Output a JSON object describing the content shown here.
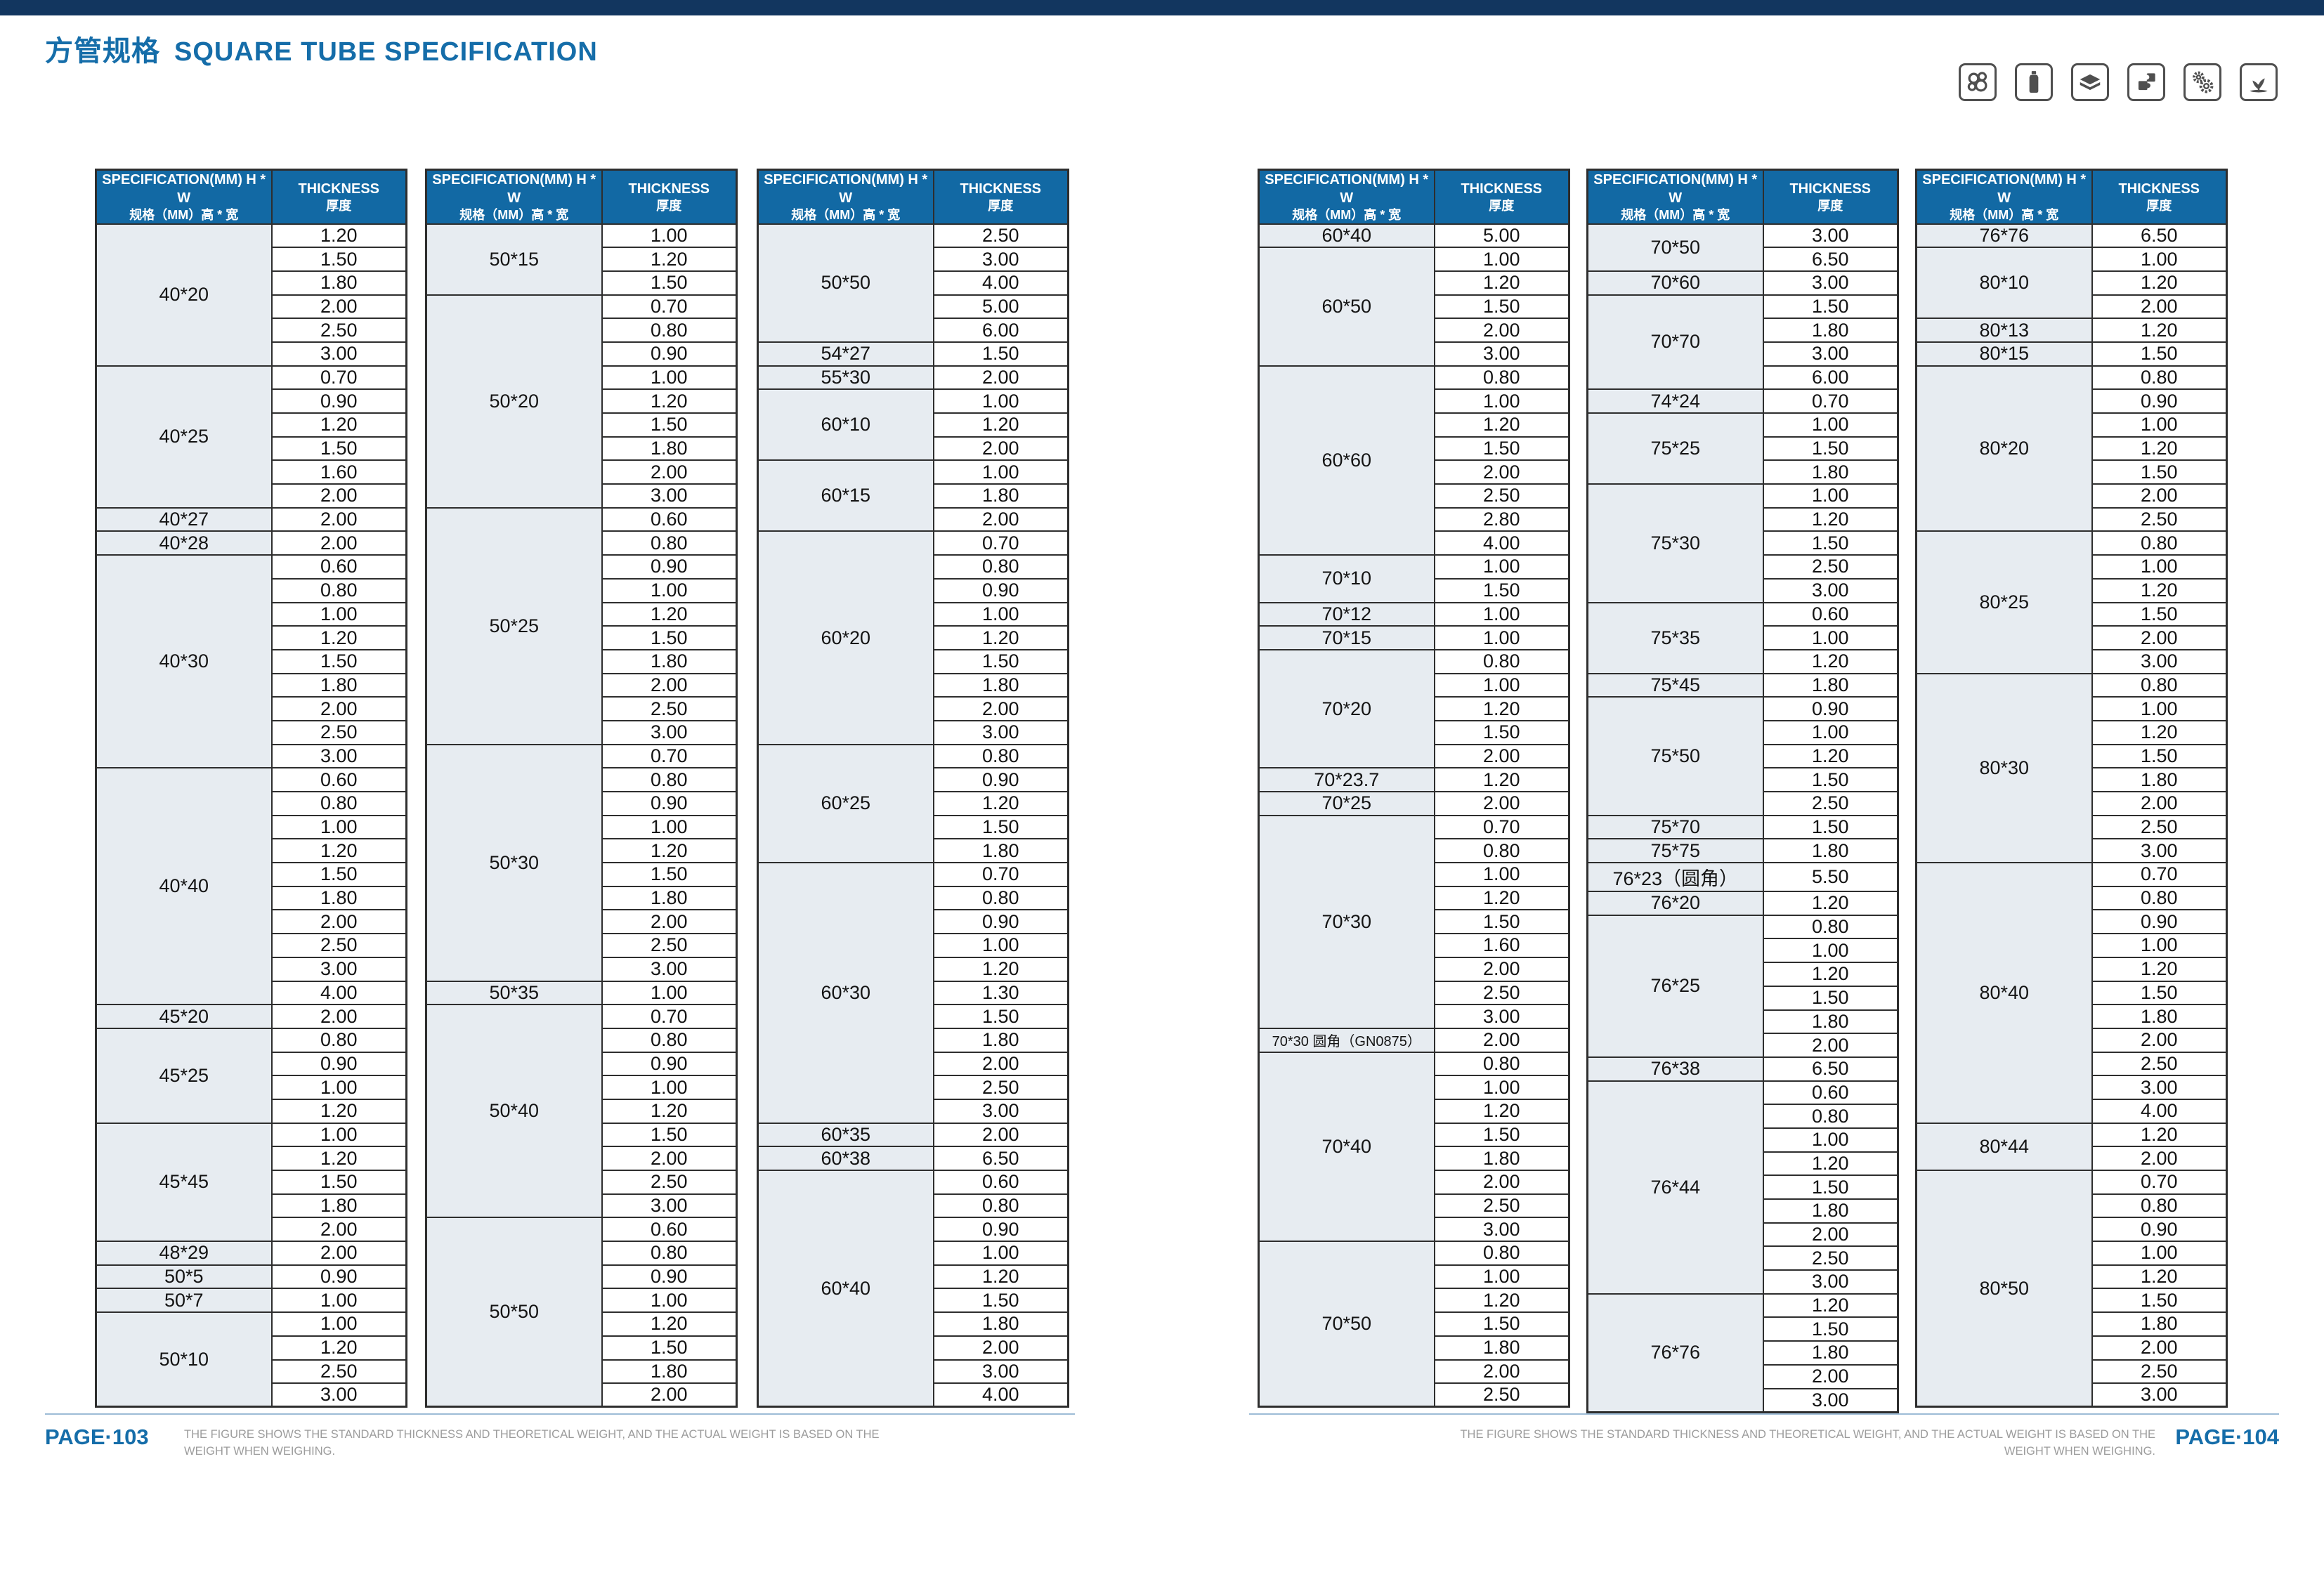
{
  "title": {
    "zh": "方管规格",
    "en": "SQUARE TUBE SPECIFICATION"
  },
  "table_header": {
    "spec_en": "SPECIFICATION(MM) H * W",
    "spec_zh": "规格（MM）高 * 宽",
    "thick_en": "THICKNESS",
    "thick_zh": "厚度"
  },
  "icons": [
    "tube-bundle-icon",
    "bottle-icon",
    "stacked-sheets-icon",
    "puzzle-icon",
    "gears-icon",
    "plant-icon"
  ],
  "colors": {
    "header_bg": "#1269a4",
    "spec_cell_bg": "#e7ecf1",
    "accent_blue": "#156da9",
    "top_bar": "#12365f",
    "border": "#2e2e2e",
    "note_gray": "#9c9c9c"
  },
  "footer": {
    "left_page": "PAGE·103",
    "right_page": "PAGE·104",
    "note_line1": "THE FIGURE SHOWS THE STANDARD THICKNESS AND THEORETICAL WEIGHT, AND THE ACTUAL WEIGHT IS BASED ON THE",
    "note_line2": "WEIGHT WHEN WEIGHING."
  },
  "tables": [
    {
      "groups": [
        {
          "spec": "40*20",
          "thicknesses": [
            "1.20",
            "1.50",
            "1.80",
            "2.00",
            "2.50",
            "3.00"
          ]
        },
        {
          "spec": "40*25",
          "thicknesses": [
            "0.70",
            "0.90",
            "1.20",
            "1.50",
            "1.60",
            "2.00"
          ]
        },
        {
          "spec": "40*27",
          "thicknesses": [
            "2.00"
          ]
        },
        {
          "spec": "40*28",
          "thicknesses": [
            "2.00"
          ]
        },
        {
          "spec": "40*30",
          "thicknesses": [
            "0.60",
            "0.80",
            "1.00",
            "1.20",
            "1.50",
            "1.80",
            "2.00",
            "2.50",
            "3.00"
          ]
        },
        {
          "spec": "40*40",
          "thicknesses": [
            "0.60",
            "0.80",
            "1.00",
            "1.20",
            "1.50",
            "1.80",
            "2.00",
            "2.50",
            "3.00",
            "4.00"
          ]
        },
        {
          "spec": "45*20",
          "thicknesses": [
            "2.00"
          ]
        },
        {
          "spec": "45*25",
          "thicknesses": [
            "0.80",
            "0.90",
            "1.00",
            "1.20"
          ]
        },
        {
          "spec": "45*45",
          "thicknesses": [
            "1.00",
            "1.20",
            "1.50",
            "1.80",
            "2.00"
          ]
        },
        {
          "spec": "48*29",
          "thicknesses": [
            "2.00"
          ]
        },
        {
          "spec": "50*5",
          "thicknesses": [
            "0.90"
          ]
        },
        {
          "spec": "50*7",
          "thicknesses": [
            "1.00"
          ]
        },
        {
          "spec": "50*10",
          "thicknesses": [
            "1.00",
            "1.20",
            "2.50",
            "3.00"
          ]
        }
      ]
    },
    {
      "groups": [
        {
          "spec": "50*15",
          "thicknesses": [
            "1.00",
            "1.20",
            "1.50"
          ]
        },
        {
          "spec": "50*20",
          "thicknesses": [
            "0.70",
            "0.80",
            "0.90",
            "1.00",
            "1.20",
            "1.50",
            "1.80",
            "2.00",
            "3.00"
          ]
        },
        {
          "spec": "50*25",
          "thicknesses": [
            "0.60",
            "0.80",
            "0.90",
            "1.00",
            "1.20",
            "1.50",
            "1.80",
            "2.00",
            "2.50",
            "3.00"
          ]
        },
        {
          "spec": "50*30",
          "thicknesses": [
            "0.70",
            "0.80",
            "0.90",
            "1.00",
            "1.20",
            "1.50",
            "1.80",
            "2.00",
            "2.50",
            "3.00"
          ]
        },
        {
          "spec": "50*35",
          "thicknesses": [
            "1.00"
          ]
        },
        {
          "spec": "50*40",
          "thicknesses": [
            "0.70",
            "0.80",
            "0.90",
            "1.00",
            "1.20",
            "1.50",
            "2.00",
            "2.50",
            "3.00"
          ]
        },
        {
          "spec": "50*50",
          "thicknesses": [
            "0.60",
            "0.80",
            "0.90",
            "1.00",
            "1.20",
            "1.50",
            "1.80",
            "2.00"
          ]
        }
      ]
    },
    {
      "groups": [
        {
          "spec": "50*50",
          "thicknesses": [
            "2.50",
            "3.00",
            "4.00",
            "5.00",
            "6.00"
          ]
        },
        {
          "spec": "54*27",
          "thicknesses": [
            "1.50"
          ]
        },
        {
          "spec": "55*30",
          "thicknesses": [
            "2.00"
          ]
        },
        {
          "spec": "60*10",
          "thicknesses": [
            "1.00",
            "1.20",
            "2.00"
          ]
        },
        {
          "spec": "60*15",
          "thicknesses": [
            "1.00",
            "1.80",
            "2.00"
          ]
        },
        {
          "spec": "60*20",
          "thicknesses": [
            "0.70",
            "0.80",
            "0.90",
            "1.00",
            "1.20",
            "1.50",
            "1.80",
            "2.00",
            "3.00"
          ]
        },
        {
          "spec": "60*25",
          "thicknesses": [
            "0.80",
            "0.90",
            "1.20",
            "1.50",
            "1.80"
          ]
        },
        {
          "spec": "60*30",
          "thicknesses": [
            "0.70",
            "0.80",
            "0.90",
            "1.00",
            "1.20",
            "1.30",
            "1.50",
            "1.80",
            "2.00",
            "2.50",
            "3.00"
          ]
        },
        {
          "spec": "60*35",
          "thicknesses": [
            "2.00"
          ]
        },
        {
          "spec": "60*38",
          "thicknesses": [
            "6.50"
          ]
        },
        {
          "spec": "60*40",
          "thicknesses": [
            "0.60",
            "0.80",
            "0.90",
            "1.00",
            "1.20",
            "1.50",
            "1.80",
            "2.00",
            "3.00",
            "4.00"
          ]
        }
      ]
    },
    {
      "groups": [
        {
          "spec": "60*40",
          "thicknesses": [
            "5.00"
          ]
        },
        {
          "spec": "60*50",
          "thicknesses": [
            "1.00",
            "1.20",
            "1.50",
            "2.00",
            "3.00"
          ]
        },
        {
          "spec": "60*60",
          "thicknesses": [
            "0.80",
            "1.00",
            "1.20",
            "1.50",
            "2.00",
            "2.50",
            "2.80",
            "4.00"
          ]
        },
        {
          "spec": "70*10",
          "thicknesses": [
            "1.00",
            "1.50"
          ]
        },
        {
          "spec": "70*12",
          "thicknesses": [
            "1.00"
          ]
        },
        {
          "spec": "70*15",
          "thicknesses": [
            "1.00"
          ]
        },
        {
          "spec": "70*20",
          "thicknesses": [
            "0.80",
            "1.00",
            "1.20",
            "1.50",
            "2.00"
          ]
        },
        {
          "spec": "70*23.7",
          "thicknesses": [
            "1.20"
          ]
        },
        {
          "spec": "70*25",
          "thicknesses": [
            "2.00"
          ]
        },
        {
          "spec": "70*30",
          "thicknesses": [
            "0.70",
            "0.80",
            "1.00",
            "1.20",
            "1.50",
            "1.60",
            "2.00",
            "2.50",
            "3.00"
          ]
        },
        {
          "spec": "70*30 圆角（GN0875）",
          "thicknesses": [
            "2.00"
          ]
        },
        {
          "spec": "70*40",
          "thicknesses": [
            "0.80",
            "1.00",
            "1.20",
            "1.50",
            "1.80",
            "2.00",
            "2.50",
            "3.00"
          ]
        },
        {
          "spec": "70*50",
          "thicknesses": [
            "0.80",
            "1.00",
            "1.20",
            "1.50",
            "1.80",
            "2.00",
            "2.50"
          ]
        }
      ]
    },
    {
      "groups": [
        {
          "spec": "70*50",
          "thicknesses": [
            "3.00",
            "6.50"
          ]
        },
        {
          "spec": "70*60",
          "thicknesses": [
            "3.00"
          ]
        },
        {
          "spec": "70*70",
          "thicknesses": [
            "1.50",
            "1.80",
            "3.00",
            "6.00"
          ]
        },
        {
          "spec": "74*24",
          "thicknesses": [
            "0.70"
          ]
        },
        {
          "spec": "75*25",
          "thicknesses": [
            "1.00",
            "1.50",
            "1.80"
          ]
        },
        {
          "spec": "75*30",
          "thicknesses": [
            "1.00",
            "1.20",
            "1.50",
            "2.50",
            "3.00"
          ]
        },
        {
          "spec": "75*35",
          "thicknesses": [
            "0.60",
            "1.00",
            "1.20"
          ]
        },
        {
          "spec": "75*45",
          "thicknesses": [
            "1.80"
          ]
        },
        {
          "spec": "75*50",
          "thicknesses": [
            "0.90",
            "1.00",
            "1.20",
            "1.50",
            "2.50"
          ]
        },
        {
          "spec": "75*70",
          "thicknesses": [
            "1.50"
          ]
        },
        {
          "spec": "75*75",
          "thicknesses": [
            "1.80"
          ]
        },
        {
          "spec": "76*23（圆角）",
          "thicknesses": [
            "5.50"
          ]
        },
        {
          "spec": "76*20",
          "thicknesses": [
            "1.20"
          ]
        },
        {
          "spec": "76*25",
          "thicknesses": [
            "0.80",
            "1.00",
            "1.20",
            "1.50",
            "1.80",
            "2.00"
          ]
        },
        {
          "spec": "76*38",
          "thicknesses": [
            "6.50"
          ]
        },
        {
          "spec": "76*44",
          "thicknesses": [
            "0.60",
            "0.80",
            "1.00",
            "1.20",
            "1.50",
            "1.80",
            "2.00",
            "2.50",
            "3.00"
          ]
        },
        {
          "spec": "76*76",
          "thicknesses": [
            "1.20",
            "1.50",
            "1.80",
            "2.00",
            "3.00"
          ]
        }
      ]
    },
    {
      "groups": [
        {
          "spec": "76*76",
          "thicknesses": [
            "6.50"
          ]
        },
        {
          "spec": "80*10",
          "thicknesses": [
            "1.00",
            "1.20",
            "2.00"
          ]
        },
        {
          "spec": "80*13",
          "thicknesses": [
            "1.20"
          ]
        },
        {
          "spec": "80*15",
          "thicknesses": [
            "1.50"
          ]
        },
        {
          "spec": "80*20",
          "thicknesses": [
            "0.80",
            "0.90",
            "1.00",
            "1.20",
            "1.50",
            "2.00",
            "2.50"
          ]
        },
        {
          "spec": "80*25",
          "thicknesses": [
            "0.80",
            "1.00",
            "1.20",
            "1.50",
            "2.00",
            "3.00"
          ]
        },
        {
          "spec": "80*30",
          "thicknesses": [
            "0.80",
            "1.00",
            "1.20",
            "1.50",
            "1.80",
            "2.00",
            "2.50",
            "3.00"
          ]
        },
        {
          "spec": "80*40",
          "thicknesses": [
            "0.70",
            "0.80",
            "0.90",
            "1.00",
            "1.20",
            "1.50",
            "1.80",
            "2.00",
            "2.50",
            "3.00",
            "4.00"
          ]
        },
        {
          "spec": "80*44",
          "thicknesses": [
            "1.20",
            "2.00"
          ]
        },
        {
          "spec": "80*50",
          "thicknesses": [
            "0.70",
            "0.80",
            "0.90",
            "1.00",
            "1.20",
            "1.50",
            "1.80",
            "2.00",
            "2.50",
            "3.00"
          ]
        }
      ]
    }
  ]
}
